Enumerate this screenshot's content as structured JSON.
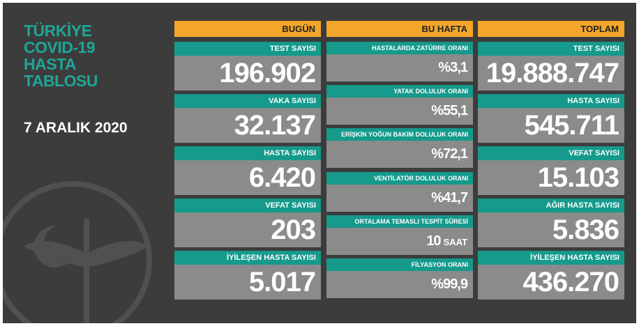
{
  "title": [
    "TÜRKİYE",
    "COVID-19",
    "HASTA",
    "TABLOSU"
  ],
  "date": "7 ARALIK 2020",
  "columns": [
    {
      "header": "BUGÜN",
      "items": [
        {
          "label": "TEST SAYISI",
          "value": "196.902"
        },
        {
          "label": "VAKA SAYISI",
          "value": "32.137"
        },
        {
          "label": "HASTA SAYISI",
          "value": "6.420"
        },
        {
          "label": "VEFAT SAYISI",
          "value": "203"
        },
        {
          "label": "İYİLEŞEN HASTA SAYISI",
          "value": "5.017"
        }
      ]
    },
    {
      "header": "BU HAFTA",
      "items": [
        {
          "label": "HASTALARDA ZATÜRRE ORANI",
          "value": "%3,1"
        },
        {
          "label": "YATAK DOLULUK ORANI",
          "value": "%55,1"
        },
        {
          "label": "ERİŞKİN YOĞUN BAKIM DOLULUK ORANI",
          "value": "%72,1"
        },
        {
          "label": "VENTİLATÖR DOLULUK ORANI",
          "value": "%41,7"
        },
        {
          "label": "ORTALAMA TEMASLI TESPİT SÜRESİ",
          "value": "10",
          "unit": "SAAT"
        },
        {
          "label": "FİLYASYON ORANI",
          "value": "%99,9"
        }
      ]
    },
    {
      "header": "TOPLAM",
      "items": [
        {
          "label": "TEST SAYISI",
          "value": "19.888.747"
        },
        {
          "label": "HASTA SAYISI",
          "value": "545.711"
        },
        {
          "label": "VEFAT SAYISI",
          "value": "15.103"
        },
        {
          "label": "AĞIR HASTA SAYISI",
          "value": "5.836"
        },
        {
          "label": "İYİLEŞEN HASTA SAYISI",
          "value": "436.270"
        }
      ]
    }
  ]
}
